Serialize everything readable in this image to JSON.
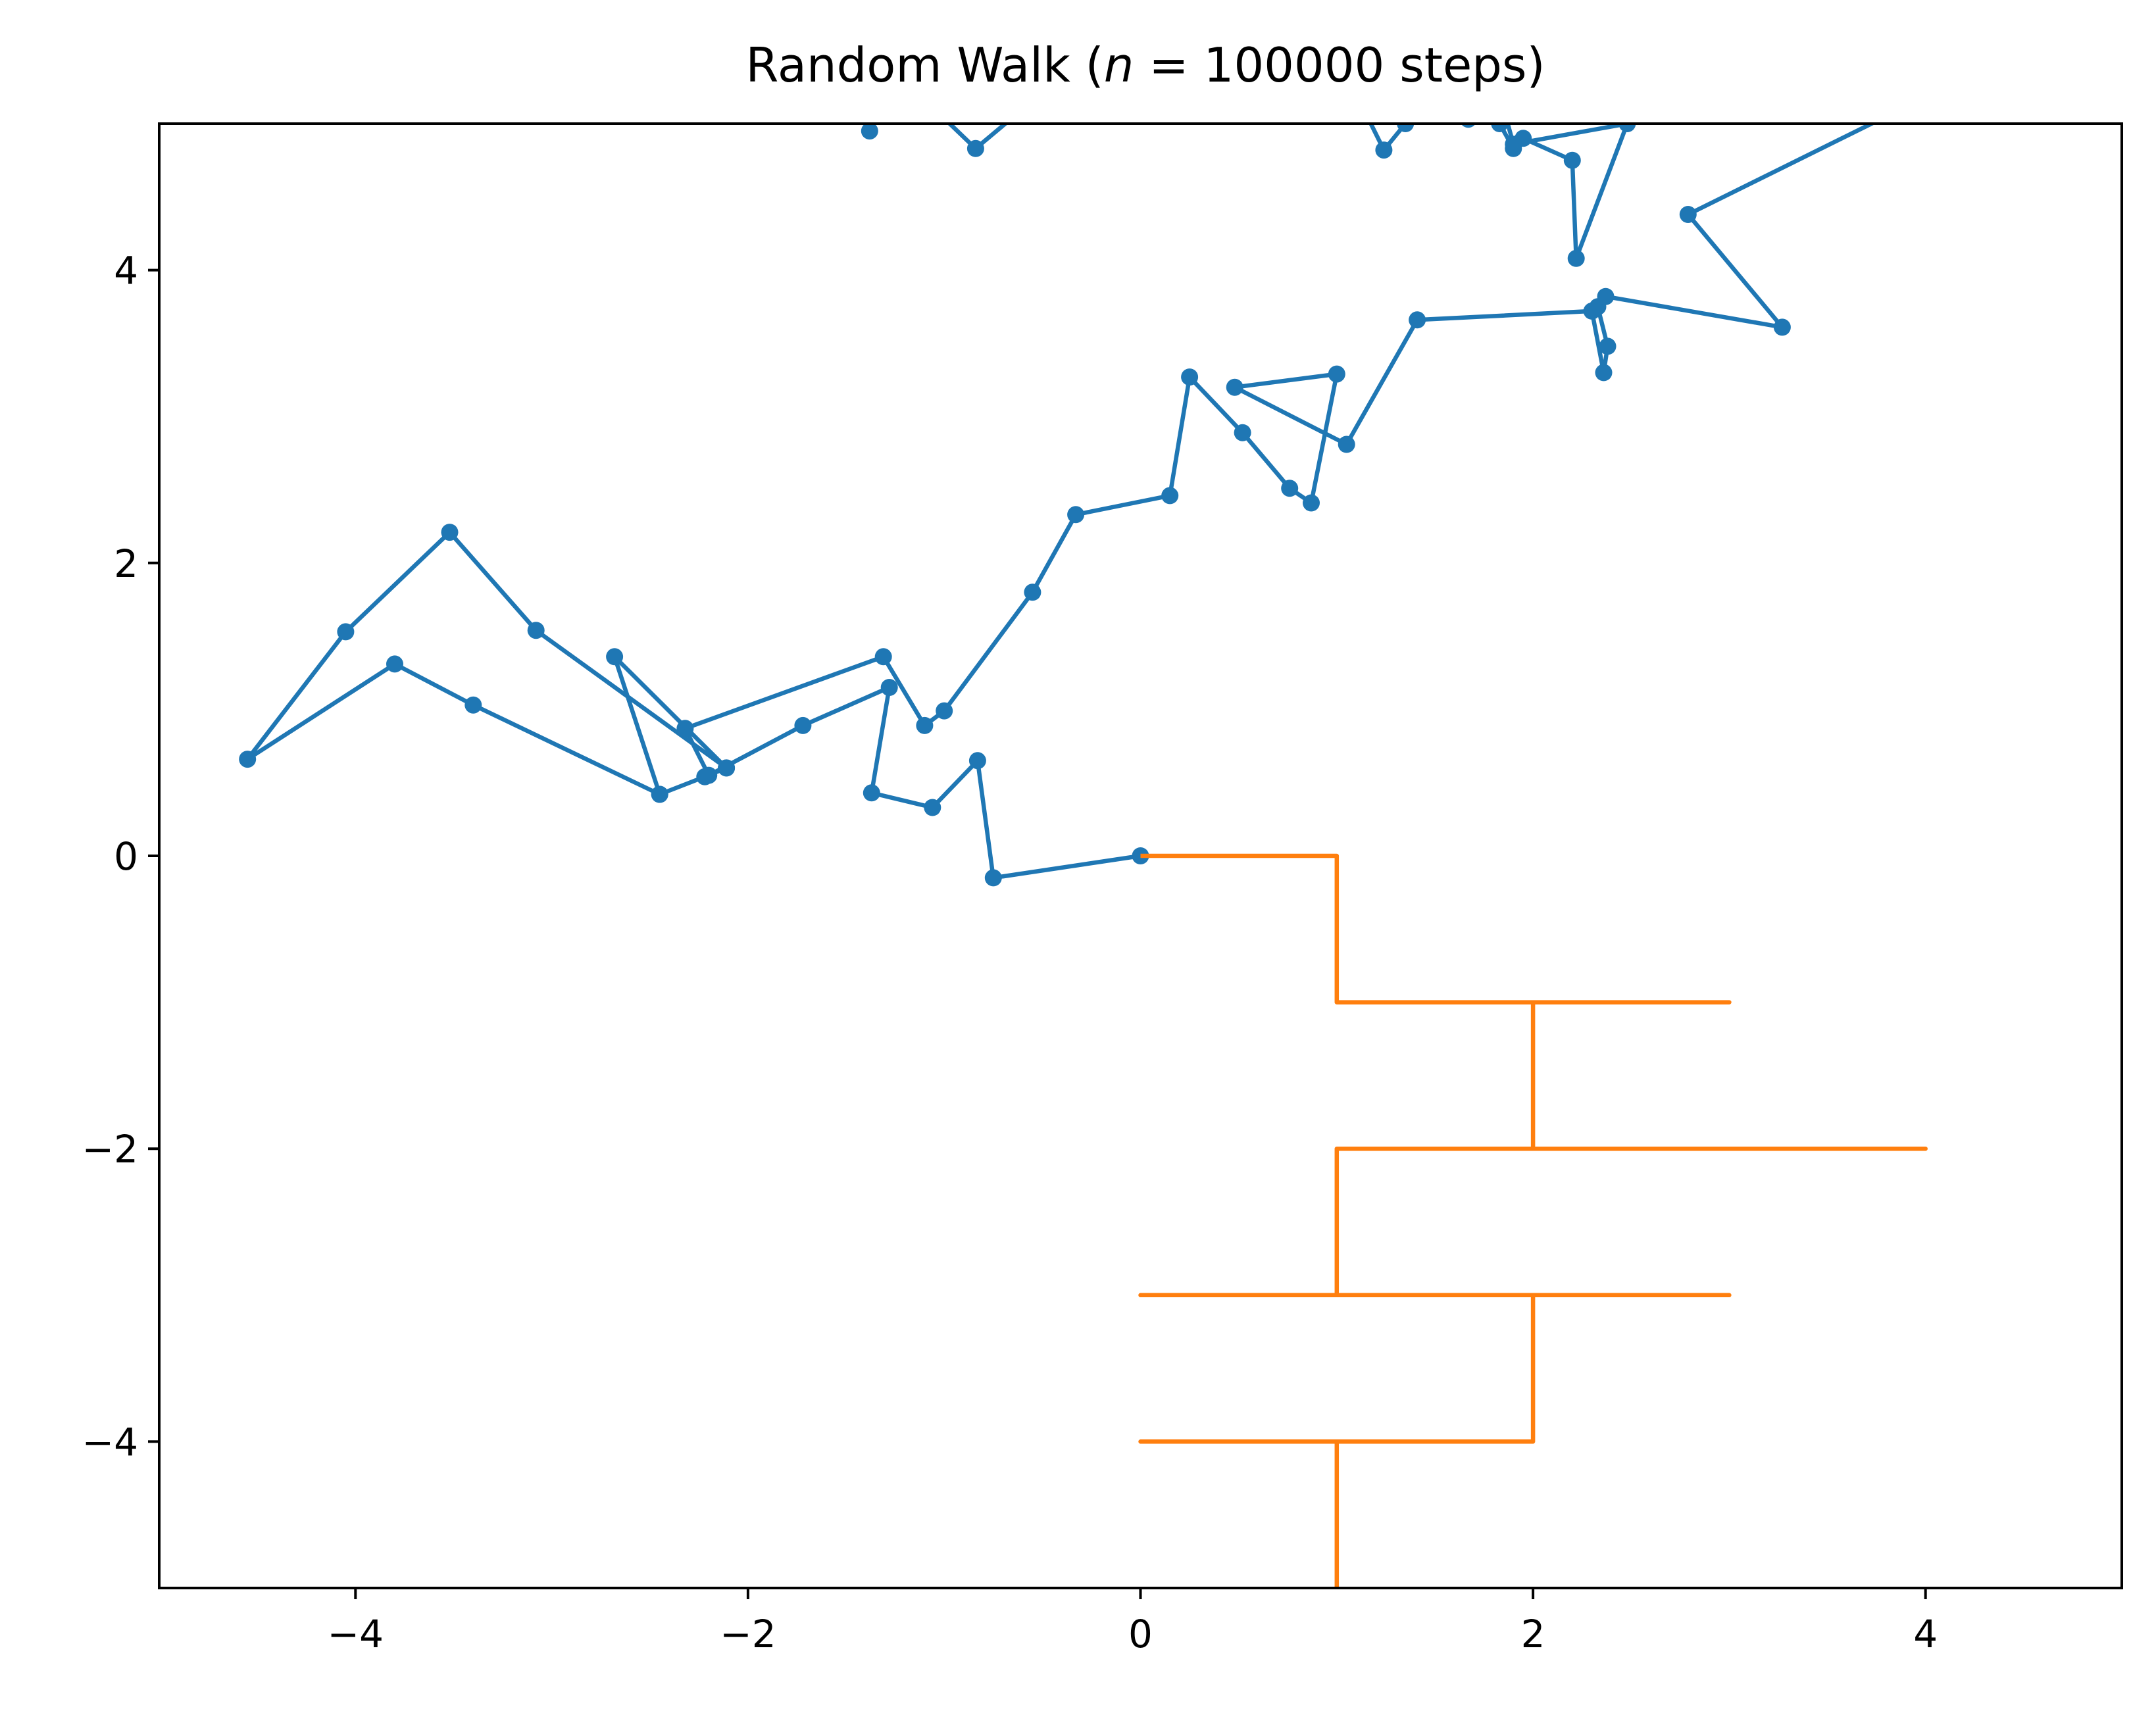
{
  "chart_data": {
    "type": "line",
    "title": "Random Walk (n = 100000 steps)",
    "title_parts": {
      "prefix": "Random Walk (",
      "variable": "n",
      "rest": " = 100000 steps)"
    },
    "xlabel": "",
    "ylabel": "",
    "xlim": [
      -5,
      5
    ],
    "ylim": [
      -5,
      5
    ],
    "xticks": [
      -4,
      -2,
      0,
      2,
      4
    ],
    "yticks": [
      -4,
      -2,
      0,
      2,
      4
    ],
    "xtick_labels": [
      "−4",
      "−2",
      "0",
      "2",
      "4"
    ],
    "ytick_labels": [
      "−4",
      "−2",
      "0",
      "2",
      "4"
    ],
    "grid": false,
    "series": [
      {
        "color": "#1f77b4",
        "markers": true,
        "points": [
          [
            0,
            0
          ],
          [
            -0.75,
            -0.15
          ],
          [
            -0.83,
            0.65
          ],
          [
            -1.06,
            0.33
          ],
          [
            -1.37,
            0.43
          ],
          [
            -1.28,
            1.15
          ],
          [
            -1.72,
            0.89
          ],
          [
            -2.2,
            0.55
          ],
          [
            -2.32,
            0.87
          ],
          [
            -1.31,
            1.36
          ],
          [
            -1.1,
            0.89
          ],
          [
            -1.0,
            0.99
          ],
          [
            -0.55,
            1.8
          ],
          [
            -0.33,
            2.33
          ],
          [
            0.15,
            2.46
          ],
          [
            0.25,
            3.27
          ],
          [
            0.52,
            2.89
          ],
          [
            0.76,
            2.51
          ],
          [
            0.87,
            2.41
          ],
          [
            1.0,
            3.29
          ],
          [
            0.48,
            3.2
          ],
          [
            1.05,
            2.81
          ],
          [
            1.41,
            3.66
          ],
          [
            2.3,
            3.72
          ],
          [
            2.36,
            3.3
          ],
          [
            2.38,
            3.48
          ],
          [
            2.33,
            3.75
          ],
          [
            2.37,
            3.82
          ],
          [
            3.27,
            3.61
          ],
          [
            2.79,
            4.38
          ],
          [
            3.8,
            5.05
          ]
        ]
      },
      {
        "color": "#1f77b4",
        "markers": true,
        "points": [
          [
            -1.38,
            4.95
          ],
          [
            -1.3,
            5.3
          ]
        ]
      },
      {
        "color": "#1f77b4",
        "markers": true,
        "points": [
          [
            -1.05,
            5.1
          ],
          [
            -0.84,
            4.83
          ],
          [
            -0.6,
            5.1
          ]
        ]
      },
      {
        "color": "#1f77b4",
        "markers": true,
        "points": [
          [
            1.1,
            5.2
          ],
          [
            1.24,
            4.82
          ],
          [
            1.35,
            5.0
          ],
          [
            1.45,
            5.2
          ]
        ]
      },
      {
        "color": "#1f77b4",
        "markers": true,
        "points": [
          [
            1.65,
            5.1
          ],
          [
            1.67,
            5.03
          ],
          [
            1.78,
            5.15
          ],
          [
            1.83,
            5.0
          ],
          [
            1.9,
            4.83
          ],
          [
            1.95,
            4.9
          ],
          [
            2.2,
            4.75
          ],
          [
            2.22,
            4.08
          ],
          [
            2.48,
            5.0
          ],
          [
            1.9,
            4.86
          ],
          [
            1.82,
            5.25
          ]
        ]
      },
      {
        "color": "#1f77b4",
        "markers": true,
        "points": [
          [
            -2.11,
            0.6
          ],
          [
            -2.22,
            0.54
          ],
          [
            -2.45,
            0.42
          ],
          [
            -3.4,
            1.03
          ],
          [
            -3.8,
            1.31
          ],
          [
            -4.55,
            0.66
          ],
          [
            -4.05,
            1.53
          ],
          [
            -3.52,
            2.21
          ],
          [
            -3.08,
            1.54
          ],
          [
            -2.11,
            0.6
          ],
          [
            -2.68,
            1.36
          ],
          [
            -2.45,
            0.42
          ]
        ]
      },
      {
        "color": "#ff7f0e",
        "markers": false,
        "points": [
          [
            0,
            0
          ],
          [
            1,
            0
          ],
          [
            1,
            -1
          ],
          [
            3,
            -1
          ],
          [
            2,
            -1
          ],
          [
            2,
            -2
          ],
          [
            4,
            -2
          ],
          [
            1,
            -2
          ],
          [
            1,
            -3
          ],
          [
            0,
            -3
          ],
          [
            3,
            -3
          ],
          [
            2,
            -3
          ],
          [
            2,
            -4
          ],
          [
            0,
            -4
          ],
          [
            1,
            -4
          ],
          [
            1,
            -5.5
          ]
        ]
      }
    ]
  }
}
